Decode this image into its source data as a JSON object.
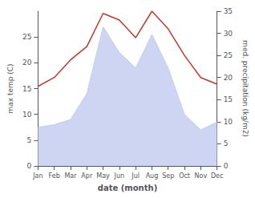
{
  "chart_data": {
    "type": "line",
    "xlabel": "date (month)",
    "ylabel": "max temp (C)",
    "y2label": "med. precipitation (kg/m2)",
    "categories": [
      "Jan",
      "Feb",
      "Mar",
      "Apr",
      "May",
      "Jun",
      "Jul",
      "Aug",
      "Sep",
      "Oct",
      "Nov",
      "Dec"
    ],
    "series": [
      {
        "type": "area",
        "color": "#c5cef0",
        "values": [
          7.5,
          8.0,
          9.0,
          14.0,
          27.0,
          22.0,
          19.0,
          25.5,
          19.0,
          10.0,
          7.0,
          8.5
        ]
      },
      {
        "type": "line",
        "color": "#c0392b",
        "axis": "y2",
        "values": [
          18.0,
          20.0,
          24.0,
          27.0,
          34.5,
          33.0,
          29.0,
          35.0,
          31.0,
          25.0,
          20.0,
          18.5
        ]
      }
    ],
    "ylim": [
      0,
      30
    ],
    "yticks": [
      0,
      5,
      10,
      15,
      20,
      25
    ],
    "y2lim": [
      0,
      35
    ],
    "y2ticks": [
      0,
      5,
      10,
      15,
      20,
      25,
      30,
      35
    ],
    "grid": false
  }
}
